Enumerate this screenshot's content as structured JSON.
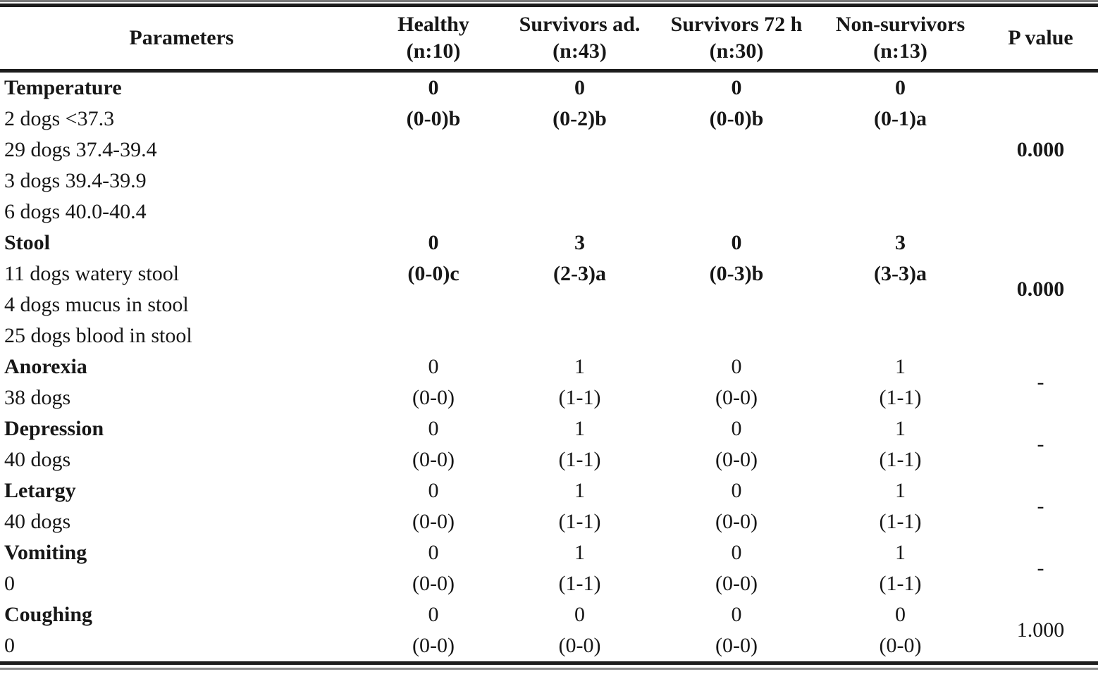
{
  "table": {
    "headers": {
      "parameters": "Parameters",
      "columns": [
        {
          "line1": "Healthy",
          "line2": "(n:10)"
        },
        {
          "line1": "Survivors ad.",
          "line2": "(n:43)"
        },
        {
          "line1": "Survivors 72 h",
          "line2": "(n:30)"
        },
        {
          "line1": "Non-survivors",
          "line2": "(n:13)"
        }
      ],
      "p_value": "P value"
    },
    "groups": [
      {
        "p_value": "0.000",
        "p_bold": true,
        "rows": [
          {
            "param": "Temperature",
            "param_bold": true,
            "values_bold": true,
            "values": [
              "0",
              "0",
              "0",
              "0"
            ]
          },
          {
            "param": "2 dogs <37.3",
            "param_bold": false,
            "values_bold": true,
            "values": [
              "(0-0)b",
              "(0-2)b",
              "(0-0)b",
              "(0-1)a"
            ]
          },
          {
            "param": "29 dogs 37.4-39.4",
            "param_bold": false,
            "values_bold": false,
            "values": [
              "",
              "",
              "",
              ""
            ]
          },
          {
            "param": "3 dogs 39.4-39.9",
            "param_bold": false,
            "values_bold": false,
            "values": [
              "",
              "",
              "",
              ""
            ]
          },
          {
            "param": "6 dogs 40.0-40.4",
            "param_bold": false,
            "values_bold": false,
            "values": [
              "",
              "",
              "",
              ""
            ]
          }
        ]
      },
      {
        "p_value": "0.000",
        "p_bold": true,
        "rows": [
          {
            "param": "Stool",
            "param_bold": true,
            "values_bold": true,
            "values": [
              "0",
              "3",
              "0",
              "3"
            ]
          },
          {
            "param": "11 dogs watery stool",
            "param_bold": false,
            "values_bold": true,
            "values": [
              "(0-0)c",
              "(2-3)a",
              "(0-3)b",
              "(3-3)a"
            ]
          },
          {
            "param": "4 dogs mucus in stool",
            "param_bold": false,
            "values_bold": false,
            "values": [
              "",
              "",
              "",
              ""
            ]
          },
          {
            "param": "25 dogs blood in stool",
            "param_bold": false,
            "values_bold": false,
            "values": [
              "",
              "",
              "",
              ""
            ]
          }
        ]
      },
      {
        "p_value": "-",
        "p_bold": false,
        "rows": [
          {
            "param": "Anorexia",
            "param_bold": true,
            "values_bold": false,
            "values": [
              "0",
              "1",
              "0",
              "1"
            ]
          },
          {
            "param": "38 dogs",
            "param_bold": false,
            "values_bold": false,
            "values": [
              "(0-0)",
              "(1-1)",
              "(0-0)",
              "(1-1)"
            ]
          }
        ]
      },
      {
        "p_value": "-",
        "p_bold": false,
        "rows": [
          {
            "param": "Depression",
            "param_bold": true,
            "values_bold": false,
            "values": [
              "0",
              "1",
              "0",
              "1"
            ]
          },
          {
            "param": "40 dogs",
            "param_bold": false,
            "values_bold": false,
            "values": [
              "(0-0)",
              "(1-1)",
              "(0-0)",
              "(1-1)"
            ]
          }
        ]
      },
      {
        "p_value": "-",
        "p_bold": false,
        "rows": [
          {
            "param": "Letargy",
            "param_bold": true,
            "values_bold": false,
            "values": [
              "0",
              "1",
              "0",
              "1"
            ]
          },
          {
            "param": "40 dogs",
            "param_bold": false,
            "values_bold": false,
            "values": [
              "(0-0)",
              "(1-1)",
              "(0-0)",
              "(1-1)"
            ]
          }
        ]
      },
      {
        "p_value": "-",
        "p_bold": false,
        "rows": [
          {
            "param": "Vomiting",
            "param_bold": true,
            "values_bold": false,
            "values": [
              "0",
              "1",
              "0",
              "1"
            ]
          },
          {
            "param": "0",
            "param_bold": false,
            "values_bold": false,
            "values": [
              "(0-0)",
              "(1-1)",
              "(0-0)",
              "(1-1)"
            ]
          }
        ]
      },
      {
        "p_value": "1.000",
        "p_bold": false,
        "rows": [
          {
            "param": "Coughing",
            "param_bold": true,
            "values_bold": false,
            "values": [
              "0",
              "0",
              "0",
              "0"
            ]
          },
          {
            "param": "0",
            "param_bold": false,
            "values_bold": false,
            "values": [
              "(0-0)",
              "(0-0)",
              "(0-0)",
              "(0-0)"
            ]
          }
        ]
      }
    ]
  }
}
